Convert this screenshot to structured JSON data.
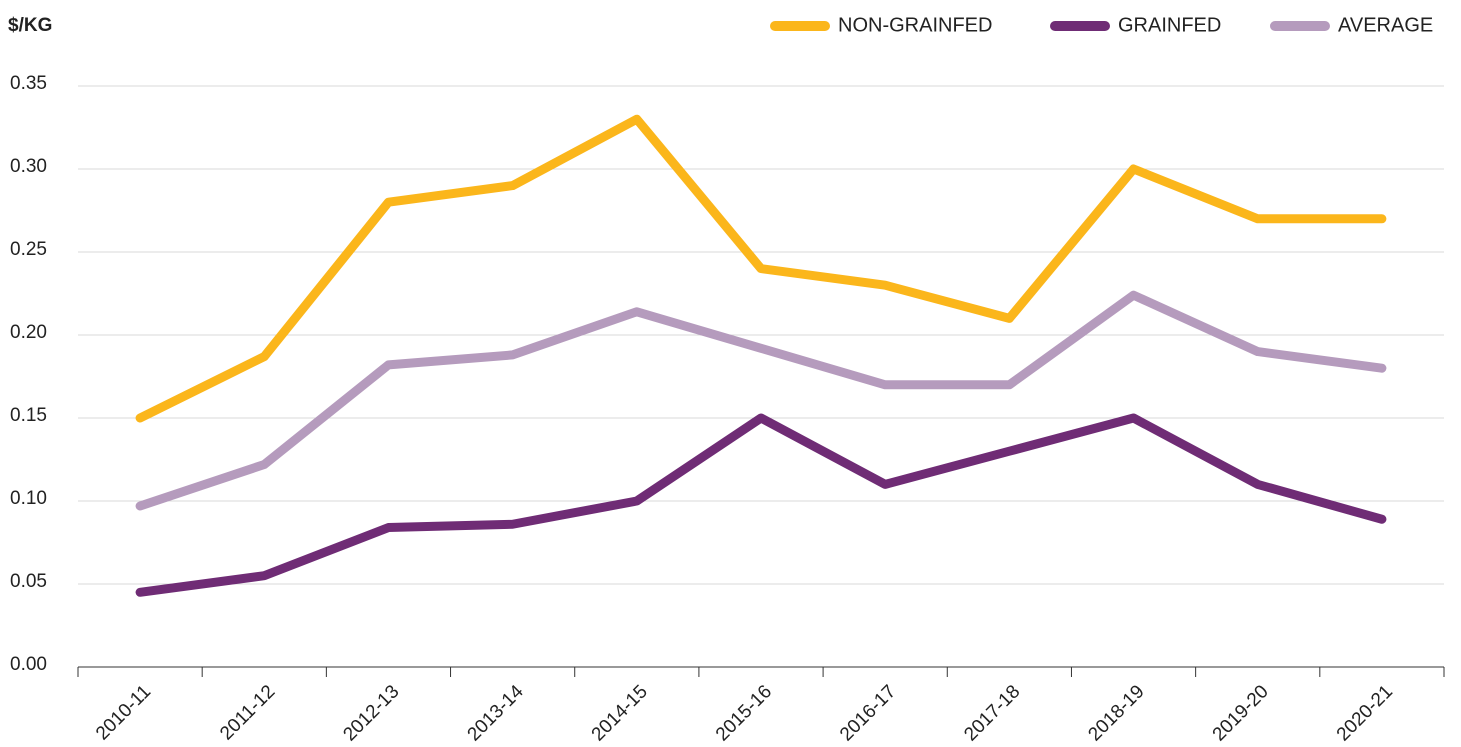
{
  "chart_data": {
    "type": "line",
    "y_label": "$/KG",
    "categories": [
      "2010-11",
      "2011-12",
      "2012-13",
      "2013-14",
      "2014-15",
      "2015-16",
      "2016-17",
      "2017-18",
      "2018-19",
      "2019-20",
      "2020-21"
    ],
    "series": [
      {
        "name": "NON-GRAINFED",
        "color": "#fbb61b",
        "values": [
          0.15,
          0.187,
          0.28,
          0.29,
          0.33,
          0.24,
          0.23,
          0.21,
          0.3,
          0.27,
          0.27
        ]
      },
      {
        "name": "GRAINFED",
        "color": "#6f2c75",
        "values": [
          0.045,
          0.055,
          0.084,
          0.086,
          0.1,
          0.15,
          0.11,
          0.13,
          0.15,
          0.11,
          0.089
        ]
      },
      {
        "name": "AVERAGE",
        "color": "#b59bbd",
        "values": [
          0.097,
          0.122,
          0.182,
          0.188,
          0.214,
          0.192,
          0.17,
          0.17,
          0.224,
          0.19,
          0.18
        ]
      }
    ],
    "ylim": [
      0,
      0.35
    ],
    "yticks": [
      {
        "value": 0,
        "label": "0.00"
      },
      0.05,
      {
        "value": 0.1,
        "label": "0.10"
      },
      0.15,
      {
        "value": 0.2,
        "label": "0.20"
      },
      0.25,
      {
        "value": 0.3,
        "label": "0.30"
      },
      0.35
    ],
    "grid": true,
    "legend": "top-right"
  }
}
